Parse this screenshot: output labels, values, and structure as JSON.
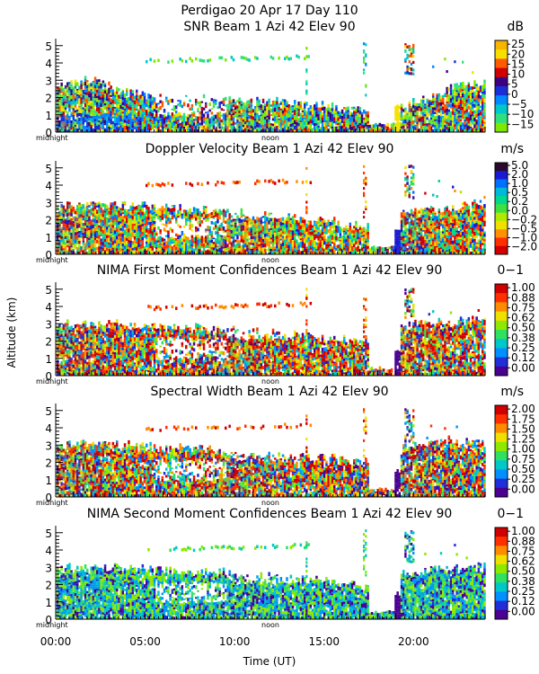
{
  "header": {
    "title": "Perdigao  20 Apr 17 Day 110"
  },
  "common": {
    "ylabel": "Altitude (km)",
    "xlabel": "Time (UT)",
    "midnight_label": "midnight",
    "noon_label": "noon",
    "x_ticks": [
      "00:00",
      "05:00",
      "10:00",
      "15:00",
      "20:00"
    ],
    "x_tick_hours": [
      0,
      5,
      10,
      15,
      20
    ],
    "y_ticks": [
      "0",
      "1",
      "2",
      "3",
      "4",
      "5"
    ],
    "xlim_hours": [
      0,
      24
    ],
    "ylim_km": [
      0,
      5.3
    ]
  },
  "panels": [
    {
      "title": "SNR Beam 1 Azi   42 Elev 90",
      "unit": "dB",
      "colorbar_labels": [
        "25",
        "20",
        "15",
        "10",
        "5",
        "0",
        "−5",
        "−10",
        "−15"
      ],
      "colorbar_colors": [
        "#f7b500",
        "#f7e000",
        "#ff5a00",
        "#d00000",
        "#3c0080",
        "#1a2ed8",
        "#0088ff",
        "#00c8c8",
        "#30e080",
        "#7ee800"
      ]
    },
    {
      "title": "Doppler Velocity Beam 1 Azi   42 Elev 90",
      "unit": "m/s",
      "colorbar_labels": [
        "5.0",
        "2.0",
        "1.0",
        "0.5",
        "0.2",
        "0.0",
        "−0.2",
        "−0.5",
        "−1.0",
        "−2.0"
      ],
      "colorbar_colors": [
        "#2a0a2a",
        "#1a1ad0",
        "#0070ff",
        "#00b8d8",
        "#00d890",
        "#40e040",
        "#b0e800",
        "#f0e000",
        "#ff9000",
        "#ff3000",
        "#d00000"
      ]
    },
    {
      "title": "NIMA First Moment Confidences Beam 1 Azi   42 Elev 90",
      "unit": "0−1",
      "colorbar_labels": [
        "1.00",
        "0.88",
        "0.75",
        "0.62",
        "0.50",
        "0.38",
        "0.25",
        "0.12",
        "0.00"
      ],
      "colorbar_colors": [
        "#d00000",
        "#ff3000",
        "#ff8c00",
        "#f0e000",
        "#8ee800",
        "#30e060",
        "#00c8c8",
        "#0090ff",
        "#2030d8",
        "#4a0090"
      ]
    },
    {
      "title": "Spectral Width Beam 1 Azi   42 Elev 90",
      "unit": "m/s",
      "colorbar_labels": [
        "2.00",
        "1.75",
        "1.50",
        "1.25",
        "1.00",
        "0.75",
        "0.50",
        "0.25",
        "0.00"
      ],
      "colorbar_colors": [
        "#d00000",
        "#ff3000",
        "#ff8c00",
        "#f0e000",
        "#8ee800",
        "#30e060",
        "#00c8c8",
        "#0090ff",
        "#2030d8",
        "#4a0090"
      ]
    },
    {
      "title": "NIMA Second Moment Confidences Beam 1 Azi   42 Elev 90",
      "unit": "0−1",
      "colorbar_labels": [
        "1.00",
        "0.88",
        "0.75",
        "0.62",
        "0.50",
        "0.38",
        "0.25",
        "0.12",
        "0.00"
      ],
      "colorbar_colors": [
        "#d00000",
        "#ff3000",
        "#ff8c00",
        "#f0e000",
        "#8ee800",
        "#30e060",
        "#00c8c8",
        "#0090ff",
        "#2030d8",
        "#4a0090"
      ]
    }
  ],
  "chart_data": [
    {
      "type": "heatmap",
      "title": "SNR Beam 1 Azi   42 Elev 90",
      "colorbar_unit": "dB",
      "colorbar_range": [
        -15,
        25
      ],
      "xlabel": "Time (UT)",
      "ylabel": "Altitude (km)",
      "xlim": [
        "00:00",
        "24:00"
      ],
      "ylim": [
        0,
        5.3
      ],
      "palette": [
        "#7ee800",
        "#30e080",
        "#00c8c8",
        "#0088ff",
        "#1a2ed8",
        "#3c0080",
        "#d00000",
        "#ff5a00",
        "#f7e000"
      ],
      "top_km": [
        [
          0,
          2.5
        ],
        [
          2,
          3.0
        ],
        [
          4,
          2.2
        ],
        [
          6,
          1.9
        ],
        [
          10,
          1.7
        ],
        [
          14,
          1.5
        ],
        [
          17,
          1.2
        ],
        [
          19.5,
          1.4
        ],
        [
          22,
          2.4
        ],
        [
          24,
          2.8
        ]
      ],
      "aloft_layer_km": 4.2,
      "aloft_layer_hours": [
        5.0,
        14.2
      ],
      "color_bias": 0.2
    },
    {
      "type": "heatmap",
      "title": "Doppler Velocity Beam 1 Azi   42 Elev 90",
      "colorbar_unit": "m/s",
      "colorbar_range": [
        -2,
        5
      ],
      "xlabel": "Time (UT)",
      "ylabel": "Altitude (km)",
      "xlim": [
        "00:00",
        "24:00"
      ],
      "ylim": [
        0,
        5.3
      ],
      "palette": [
        "#d00000",
        "#ff3000",
        "#ff9000",
        "#f0e000",
        "#b0e800",
        "#40e040",
        "#00d890",
        "#00b8d8",
        "#0070ff",
        "#1a1ad0"
      ],
      "top_km": [
        [
          0,
          2.7
        ],
        [
          2,
          2.9
        ],
        [
          5,
          2.7
        ],
        [
          8,
          2.5
        ],
        [
          12,
          2.2
        ],
        [
          15,
          1.8
        ],
        [
          17.2,
          1.5
        ],
        [
          19.5,
          2.3
        ],
        [
          22,
          2.6
        ],
        [
          24,
          2.9
        ]
      ],
      "aloft_layer_km": 4.1,
      "aloft_layer_hours": [
        5.0,
        14.2
      ],
      "color_bias": 0.25
    },
    {
      "type": "heatmap",
      "title": "NIMA First Moment Confidences Beam 1 Azi   42 Elev 90",
      "colorbar_unit": "0−1",
      "colorbar_range": [
        0,
        1
      ],
      "xlabel": "Time (UT)",
      "ylabel": "Altitude (km)",
      "xlim": [
        "00:00",
        "24:00"
      ],
      "ylim": [
        0,
        5.3
      ],
      "palette": [
        "#d00000",
        "#ff3000",
        "#ff8c00",
        "#f0e000",
        "#8ee800",
        "#30e060",
        "#00c8c8",
        "#0090ff",
        "#2030d8",
        "#4a0090"
      ],
      "top_km": [
        [
          0,
          2.8
        ],
        [
          2,
          3.0
        ],
        [
          5,
          2.8
        ],
        [
          9,
          2.6
        ],
        [
          13,
          2.3
        ],
        [
          16,
          2.0
        ],
        [
          17.2,
          1.9
        ],
        [
          19.5,
          2.9
        ],
        [
          22,
          3.0
        ],
        [
          24,
          3.2
        ]
      ],
      "aloft_layer_km": 4.0,
      "aloft_layer_hours": [
        5.0,
        14.2
      ],
      "color_bias": 0.4
    },
    {
      "type": "heatmap",
      "title": "Spectral Width Beam 1 Azi   42 Elev 90",
      "colorbar_unit": "m/s",
      "colorbar_range": [
        0,
        2
      ],
      "xlabel": "Time (UT)",
      "ylabel": "Altitude (km)",
      "xlim": [
        "00:00",
        "24:00"
      ],
      "ylim": [
        0,
        5.3
      ],
      "palette": [
        "#d00000",
        "#ff3000",
        "#ff8c00",
        "#f0e000",
        "#8ee800",
        "#30e060",
        "#00c8c8",
        "#0090ff",
        "#2030d8",
        "#4a0090"
      ],
      "top_km": [
        [
          0,
          2.8
        ],
        [
          2,
          3.0
        ],
        [
          5,
          2.8
        ],
        [
          9,
          2.6
        ],
        [
          13,
          2.3
        ],
        [
          16,
          2.1
        ],
        [
          17.2,
          1.9
        ],
        [
          19.5,
          2.8
        ],
        [
          22,
          3.1
        ],
        [
          24,
          3.0
        ]
      ],
      "aloft_layer_km": 4.0,
      "aloft_layer_hours": [
        5.0,
        14.2
      ],
      "color_bias": 0.3
    },
    {
      "type": "heatmap",
      "title": "NIMA Second Moment Confidences Beam 1 Azi   42 Elev 90",
      "colorbar_unit": "0−1",
      "colorbar_range": [
        0,
        1
      ],
      "xlabel": "Time (UT)",
      "ylabel": "Altitude (km)",
      "xlim": [
        "00:00",
        "24:00"
      ],
      "ylim": [
        0,
        5.3
      ],
      "palette": [
        "#8ee800",
        "#30e060",
        "#00c8c8",
        "#00a8e0",
        "#0090ff",
        "#2030d8",
        "#4a0090"
      ],
      "top_km": [
        [
          0,
          2.8
        ],
        [
          2,
          3.0
        ],
        [
          5,
          2.8
        ],
        [
          9,
          2.6
        ],
        [
          13,
          2.3
        ],
        [
          16,
          2.0
        ],
        [
          17.2,
          1.8
        ],
        [
          19.5,
          2.6
        ],
        [
          22,
          2.9
        ],
        [
          24,
          3.0
        ]
      ],
      "aloft_layer_km": 4.1,
      "aloft_layer_hours": [
        5.0,
        14.2
      ],
      "color_bias": 0.35
    }
  ]
}
